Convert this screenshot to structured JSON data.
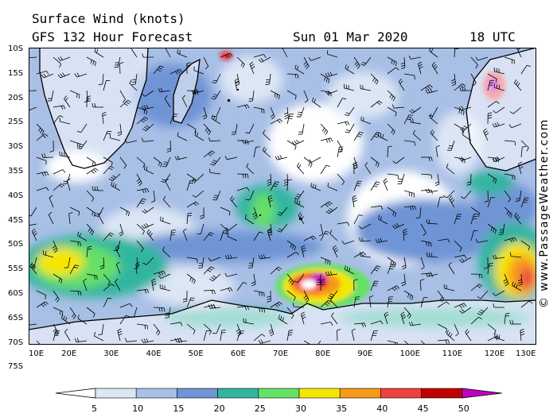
{
  "header": {
    "title": "Surface Wind (knots)",
    "model": "GFS 132 Hour Forecast",
    "date": "Sun 01 Mar 2020",
    "time": "18 UTC"
  },
  "copyright": "© www.PassageWeather.com",
  "latitude_labels": [
    "10S",
    "15S",
    "20S",
    "25S",
    "30S",
    "35S",
    "40S",
    "45S",
    "50S",
    "55S",
    "60S",
    "65S",
    "70S",
    "75S"
  ],
  "longitude_labels": [
    "10E",
    "20E",
    "30E",
    "40E",
    "50E",
    "60E",
    "70E",
    "80E",
    "90E",
    "100E",
    "110E",
    "120E",
    "130E"
  ],
  "colorbar": {
    "values": [
      "5",
      "10",
      "15",
      "20",
      "25",
      "30",
      "35",
      "40",
      "45",
      "50"
    ],
    "colors": [
      "#ffffff",
      "#dce6f5",
      "#a8bfe6",
      "#6f95d6",
      "#33b5a0",
      "#66e066",
      "#f5e600",
      "#f59a1a",
      "#f04040",
      "#c00000",
      "#c000c0"
    ]
  }
}
